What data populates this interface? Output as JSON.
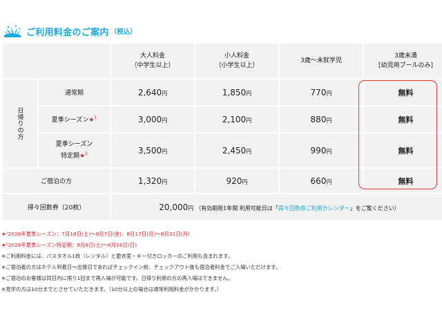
{
  "header": {
    "icon": "splash-icon",
    "title": "ご利用料金のご案内",
    "title_sub": "（税込）"
  },
  "table": {
    "columns": [
      {
        "line1": "大人料金",
        "line2": "（中学生以上）"
      },
      {
        "line1": "小人料金",
        "line2": "（小学生以上）"
      },
      {
        "line1": "3歳～未就学児",
        "line2": ""
      },
      {
        "line1": "3歳未満",
        "line2": "[幼児用プールのみ]"
      }
    ],
    "group_label": "日帰りの方",
    "yen": "円",
    "rows": [
      {
        "label": "通常期",
        "adult": "2,640",
        "child": "1,850",
        "toddler": "770",
        "infant": "無料"
      },
      {
        "label": "夏季シーズン",
        "star": "★",
        "star_num": "1",
        "adult": "3,000",
        "child": "2,100",
        "toddler": "880",
        "infant": "無料"
      },
      {
        "label_line1": "夏季シーズン",
        "label_line2": "特定期",
        "star": "★",
        "star_num": "2",
        "adult": "3,500",
        "child": "2,450",
        "toddler": "990",
        "infant": "無料"
      },
      {
        "label": "ご宿泊の方",
        "adult": "1,320",
        "child": "920",
        "toddler": "660",
        "infant": "無料"
      }
    ],
    "coupon": {
      "label": "得々回数券（20枚）",
      "price": "20,000",
      "note_pre": "（有効期限1年間 利用可能日は「",
      "link": "得々回数券ご利用カレンダー",
      "note_post": "」をご覧ください）"
    }
  },
  "notes": [
    {
      "text": "★¹2026年夏季シーズン：7月18日(土)～8月7日(金)、8月17日(月)～8月31日(月)",
      "red": true
    },
    {
      "text": "★²2026年夏季シーズン特定期：8月8日(土)～8月16日(日)",
      "red": true
    },
    {
      "text": "※ご利用料金には、バスタオル1枚（レンタル）と更衣室・キー付きロッカーのご利用も含まれます。",
      "red": false
    },
    {
      "text": "※ご宿泊者の方はホテル到着日～出発日であればチェックイン前、チェックアウト後も宿泊者料金でご入場いただけます。",
      "red": false
    },
    {
      "text": "※ご宿泊のお客様は同日内に限り1回まで再入場が可能です。日帰り利用の方の再入場はできません。",
      "red": false
    },
    {
      "text": "※見学の方は10分までとさせていただきます。（10分以上の場合は通常利用料金がかかります。）",
      "red": false
    }
  ]
}
